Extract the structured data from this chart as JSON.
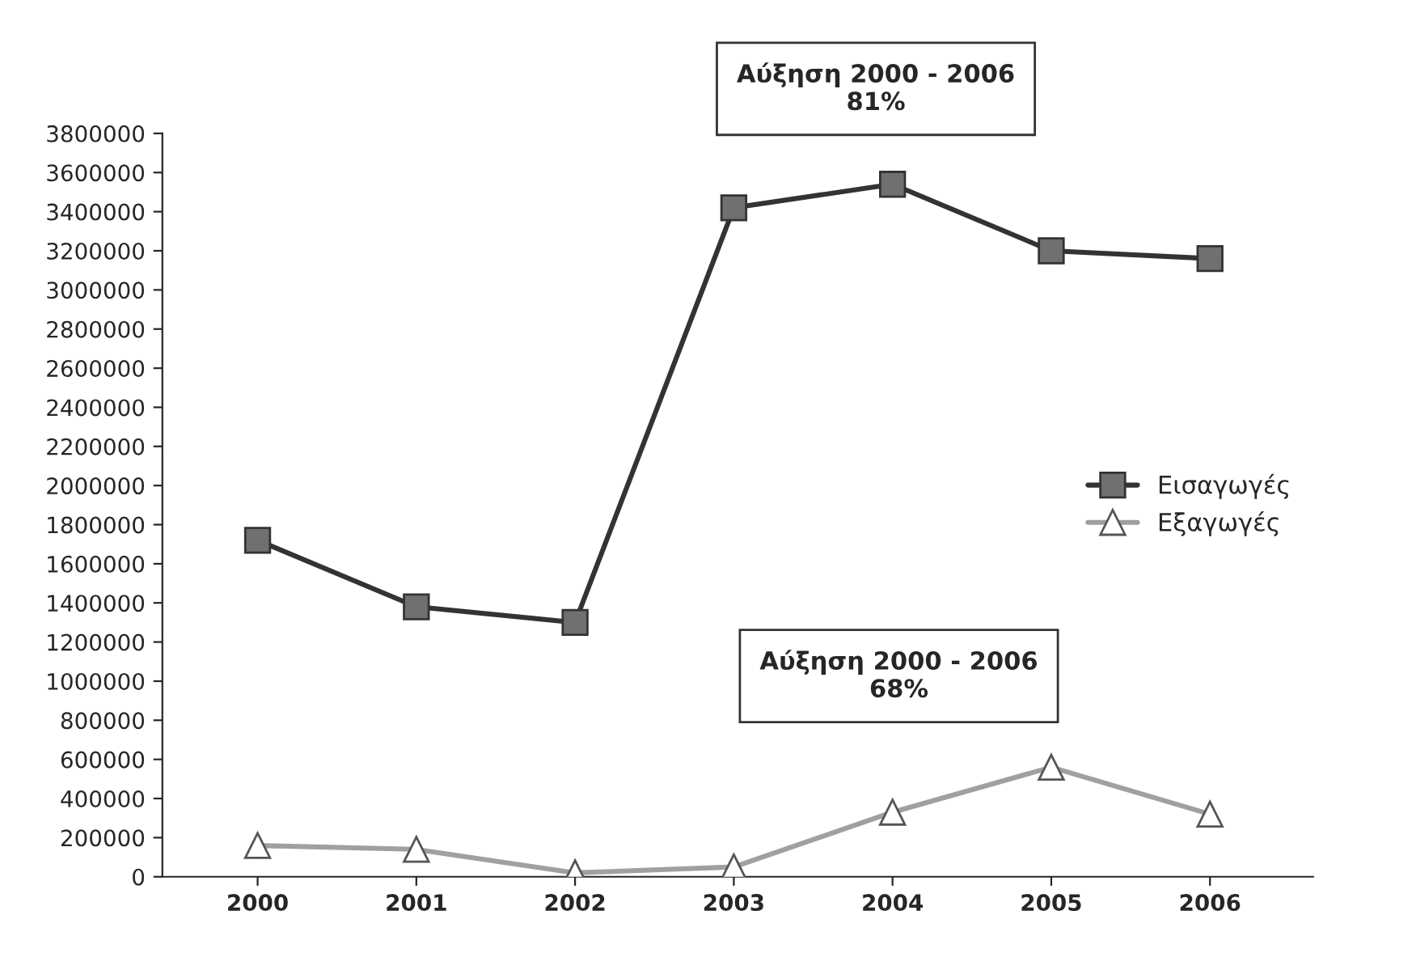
{
  "chart_data": {
    "type": "line",
    "categories": [
      "2000",
      "2001",
      "2002",
      "2003",
      "2004",
      "2005",
      "2006"
    ],
    "series": [
      {
        "name": "Εισαγωγές",
        "color": "#333333",
        "marker": "square",
        "values": [
          1720000,
          1380000,
          1300000,
          3420000,
          3540000,
          3200000,
          3160000
        ]
      },
      {
        "name": "Εξαγωγές",
        "color": "#a0a0a0",
        "marker": "triangle",
        "values": [
          160000,
          140000,
          20000,
          50000,
          330000,
          560000,
          320000
        ]
      }
    ],
    "ylim": [
      0,
      3800000
    ],
    "yticks": [
      0,
      200000,
      400000,
      600000,
      800000,
      1000000,
      1200000,
      1400000,
      1600000,
      1800000,
      2000000,
      2200000,
      2400000,
      2600000,
      2800000,
      3000000,
      3200000,
      3400000,
      3600000,
      3800000
    ],
    "annotations": [
      "Αύξηση 2000 - 2006\n81%",
      "Αύξηση 2000 - 2006\n68%"
    ],
    "legend": "center right",
    "grid": false,
    "line_style": "solid"
  }
}
